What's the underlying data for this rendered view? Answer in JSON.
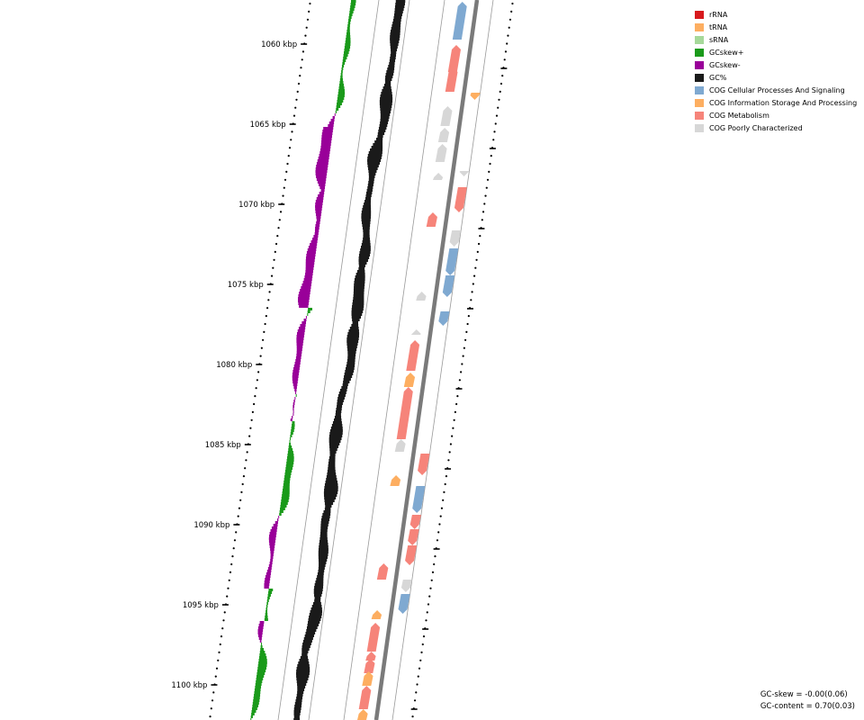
{
  "ruler": {
    "unit": "kbp",
    "labels": [
      "1060 kbp",
      "1065 kbp",
      "1070 kbp",
      "1075 kbp",
      "1080 kbp",
      "1085 kbp",
      "1090 kbp",
      "1095 kbp",
      "1100 kbp"
    ]
  },
  "legend": [
    {
      "label": "rRNA",
      "color": "#d7191c"
    },
    {
      "label": "tRNA",
      "color": "#fdae61"
    },
    {
      "label": "sRNA",
      "color": "#a6d99a"
    },
    {
      "label": "GCskew+",
      "color": "#1a9a1a"
    },
    {
      "label": "GCskew-",
      "color": "#990099"
    },
    {
      "label": "GC%",
      "color": "#1a1a1a"
    },
    {
      "label": "COG Cellular Processes And Signaling",
      "color": "#7fa9d1"
    },
    {
      "label": "COG Information Storage And Processing",
      "color": "#fdae61"
    },
    {
      "label": "COG Metabolism",
      "color": "#f6847a"
    },
    {
      "label": "COG Poorly Characterized",
      "color": "#d7d7d7"
    }
  ],
  "stats": {
    "gc_skew": "GC-skew = -0.00(0.06)",
    "gc_content": "GC-content = 0.70(0.03)"
  }
}
